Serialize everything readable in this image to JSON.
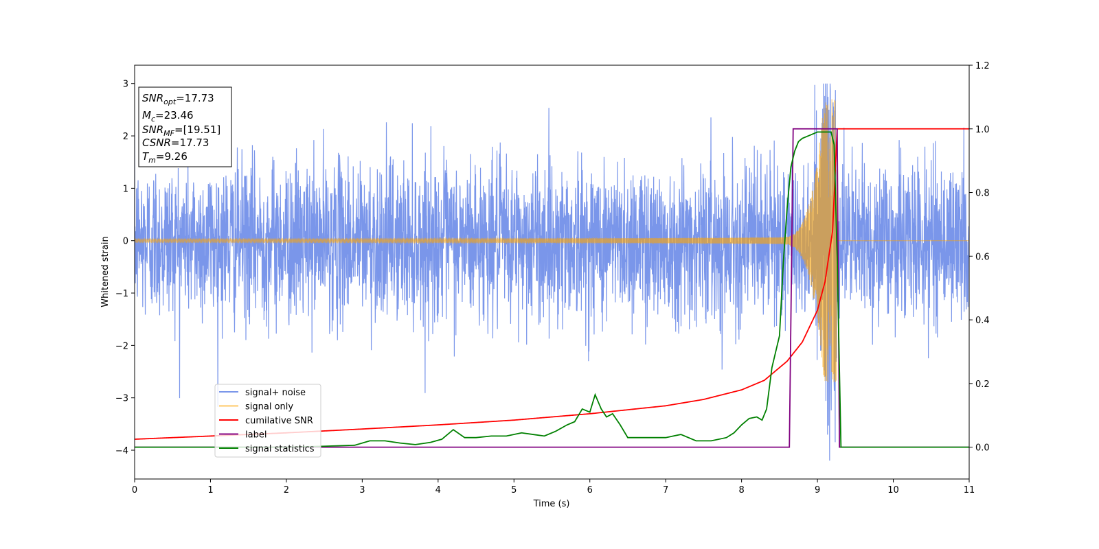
{
  "chart_data": {
    "type": "line",
    "xlabel": "Time (s)",
    "ylabel": "Whitened strain",
    "xlim": [
      0,
      11
    ],
    "ylim": [
      -4.55,
      3.35
    ],
    "y2lim": [
      -0.1,
      1.2
    ],
    "x_ticks": [
      "0",
      "1",
      "2",
      "3",
      "4",
      "5",
      "6",
      "7",
      "8",
      "9",
      "10",
      "11"
    ],
    "y_ticks": [
      "3",
      "2",
      "1",
      "0",
      "−1",
      "−2",
      "−3",
      "−4"
    ],
    "y2_ticks": [
      "1.2",
      "1.0",
      "0.8",
      "0.6",
      "0.4",
      "0.2",
      "0.0"
    ],
    "legend_position": "lower-left",
    "legend": [
      {
        "label": "signal+ noise",
        "color": "#4169e1"
      },
      {
        "label": "signal only",
        "color": "#ffa500"
      },
      {
        "label": "cumilative SNR",
        "color": "#ff0000"
      },
      {
        "label": "label",
        "color": "#800080"
      },
      {
        "label": "signal statistics",
        "color": "#008000"
      }
    ],
    "info_box": [
      {
        "main": "SNR",
        "sub": "opt",
        "rest": "=17.73"
      },
      {
        "main": "M",
        "sub": "c",
        "rest": "=23.46"
      },
      {
        "main": "SNR",
        "sub": "MF",
        "rest": "=[19.51]"
      },
      {
        "main": "CSNR",
        "sub": "",
        "rest": "=17.73"
      },
      {
        "main": "T",
        "sub": "m",
        "rest": "=9.26"
      }
    ],
    "series": [
      {
        "name": "signal+ noise",
        "color": "#4169e1",
        "axis": "left",
        "description_points": {
          "noise_sigma": 0.75,
          "max_abs": 3.0
        },
        "x_range": [
          0,
          11
        ]
      },
      {
        "name": "signal only",
        "color": "#ffa500",
        "axis": "left",
        "merger_time": 9.26,
        "peak_amplitude": 2.7
      },
      {
        "name": "cumilative SNR",
        "color": "#ff0000",
        "axis": "right",
        "x": [
          0,
          1,
          2,
          3,
          4,
          5,
          6,
          7,
          7.5,
          8,
          8.3,
          8.6,
          8.8,
          9.0,
          9.1,
          9.2,
          9.26,
          11
        ],
        "y": [
          0.025,
          0.035,
          0.045,
          0.057,
          0.07,
          0.085,
          0.105,
          0.13,
          0.15,
          0.18,
          0.21,
          0.27,
          0.33,
          0.43,
          0.52,
          0.68,
          1.0,
          1.0
        ]
      },
      {
        "name": "label",
        "color": "#800080",
        "axis": "right",
        "x": [
          0,
          8.63,
          8.68,
          9.26,
          9.29,
          11
        ],
        "y": [
          0.0,
          0.0,
          1.0,
          1.0,
          0.0,
          0.0
        ]
      },
      {
        "name": "signal statistics",
        "color": "#008000",
        "axis": "right",
        "x": [
          0,
          1,
          2,
          2.5,
          2.9,
          3.1,
          3.3,
          3.5,
          3.7,
          3.9,
          4.05,
          4.2,
          4.35,
          4.5,
          4.7,
          4.9,
          5.1,
          5.25,
          5.4,
          5.55,
          5.7,
          5.8,
          5.9,
          6.0,
          6.07,
          6.15,
          6.22,
          6.3,
          6.4,
          6.5,
          6.6,
          6.8,
          7.0,
          7.2,
          7.4,
          7.6,
          7.8,
          7.9,
          8.0,
          8.1,
          8.2,
          8.27,
          8.33,
          8.4,
          8.45,
          8.5,
          8.55,
          8.6,
          8.65,
          8.7,
          8.75,
          8.8,
          8.9,
          9.0,
          9.1,
          9.18,
          9.22,
          9.26,
          9.31,
          11
        ],
        "y": [
          0.0,
          0.0,
          0.0,
          0.003,
          0.006,
          0.02,
          0.02,
          0.013,
          0.008,
          0.015,
          0.025,
          0.055,
          0.03,
          0.03,
          0.035,
          0.035,
          0.045,
          0.04,
          0.035,
          0.05,
          0.07,
          0.08,
          0.12,
          0.11,
          0.165,
          0.12,
          0.095,
          0.105,
          0.07,
          0.03,
          0.03,
          0.03,
          0.03,
          0.04,
          0.02,
          0.02,
          0.03,
          0.045,
          0.07,
          0.09,
          0.095,
          0.085,
          0.12,
          0.25,
          0.3,
          0.35,
          0.58,
          0.75,
          0.88,
          0.93,
          0.96,
          0.97,
          0.98,
          0.99,
          0.99,
          0.99,
          0.95,
          0.6,
          0.0,
          0.0
        ]
      }
    ]
  }
}
